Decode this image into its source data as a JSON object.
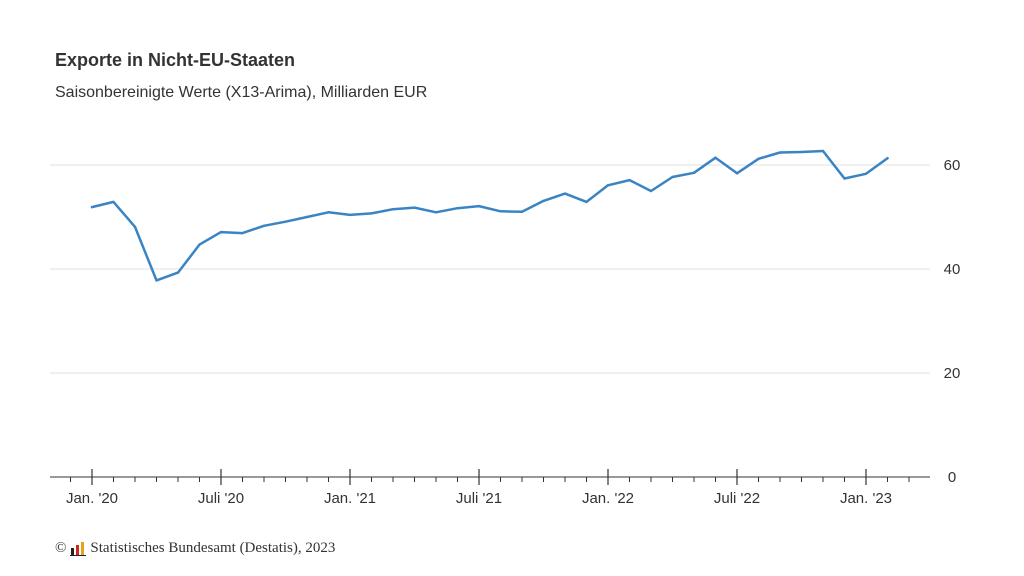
{
  "header": {
    "title": "Exporte in Nicht-EU-Staaten",
    "subtitle": "Saisonbereinigte Werte (X13-Arima), Milliarden EUR"
  },
  "footer": {
    "copyright_symbol": "©",
    "logo_icon": "destatis-logo-icon",
    "source": "Statistisches Bundesamt (Destatis), 2023"
  },
  "chart_data": {
    "type": "line",
    "title": "Exporte in Nicht-EU-Staaten",
    "subtitle": "Saisonbereinigte Werte (X13-Arima), Milliarden EUR",
    "xlabel": "",
    "ylabel": "",
    "ylim": [
      0,
      70
    ],
    "yticks": [
      0,
      20,
      40,
      60
    ],
    "y_axis_position": "right",
    "grid": true,
    "legend": "none",
    "line_color": "#3a84c4",
    "x": [
      "2020-01",
      "2020-02",
      "2020-03",
      "2020-04",
      "2020-05",
      "2020-06",
      "2020-07",
      "2020-08",
      "2020-09",
      "2020-10",
      "2020-11",
      "2020-12",
      "2021-01",
      "2021-02",
      "2021-03",
      "2021-04",
      "2021-05",
      "2021-06",
      "2021-07",
      "2021-08",
      "2021-09",
      "2021-10",
      "2021-11",
      "2021-12",
      "2022-01",
      "2022-02",
      "2022-03",
      "2022-04",
      "2022-05",
      "2022-06",
      "2022-07",
      "2022-08",
      "2022-09",
      "2022-10",
      "2022-11",
      "2022-12",
      "2023-01",
      "2023-02"
    ],
    "xticks": [
      {
        "x": "2020-01",
        "label": "Jan. '20"
      },
      {
        "x": "2020-07",
        "label": "Juli '20"
      },
      {
        "x": "2021-01",
        "label": "Jan. '21"
      },
      {
        "x": "2021-07",
        "label": "Juli '21"
      },
      {
        "x": "2022-01",
        "label": "Jan. '22"
      },
      {
        "x": "2022-07",
        "label": "Juli '22"
      },
      {
        "x": "2023-01",
        "label": "Jan. '23"
      }
    ],
    "series": [
      {
        "values": [
          51.9,
          52.9,
          48.1,
          37.8,
          39.3,
          44.7,
          47.1,
          46.9,
          48.3,
          49.1,
          50.0,
          50.9,
          50.4,
          50.7,
          51.5,
          51.8,
          50.9,
          51.7,
          52.1,
          51.1,
          51.0,
          53.1,
          54.5,
          52.9,
          56.1,
          57.1,
          55.0,
          57.7,
          58.5,
          61.4,
          58.4,
          61.2,
          62.4,
          62.5,
          62.7,
          57.4,
          58.3,
          61.3
        ]
      }
    ]
  }
}
